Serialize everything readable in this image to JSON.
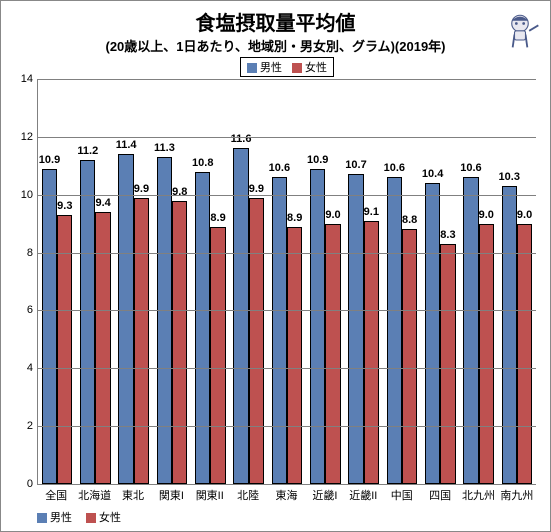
{
  "chart": {
    "title": "食塩摂取量平均値",
    "subtitle": "(20歳以上、1日あたり、地域別・男女別、グラム)(2019年)",
    "title_fontsize": 20,
    "subtitle_fontsize": 13,
    "type": "bar",
    "background_color": "#ffffff",
    "grid_color": "#808080",
    "ylim": [
      0,
      14
    ],
    "ytick_step": 2,
    "categories": [
      "全国",
      "北海道",
      "東北",
      "関東I",
      "関東II",
      "北陸",
      "東海",
      "近畿I",
      "近畿II",
      "中国",
      "四国",
      "北九州",
      "南九州"
    ],
    "series": [
      {
        "name": "男性",
        "color": "#5b7fb4",
        "values": [
          10.9,
          11.2,
          11.4,
          11.3,
          10.8,
          11.6,
          10.6,
          10.9,
          10.7,
          10.6,
          10.4,
          10.6,
          10.3
        ]
      },
      {
        "name": "女性",
        "color": "#be5150",
        "values": [
          9.3,
          9.4,
          9.9,
          9.8,
          8.9,
          9.9,
          8.9,
          9.0,
          9.1,
          8.8,
          8.3,
          9.0,
          9.0
        ]
      }
    ],
    "bar_border_color": "#000000",
    "label_fontsize": 11,
    "legend": {
      "male": "男性",
      "female": "女性"
    }
  }
}
